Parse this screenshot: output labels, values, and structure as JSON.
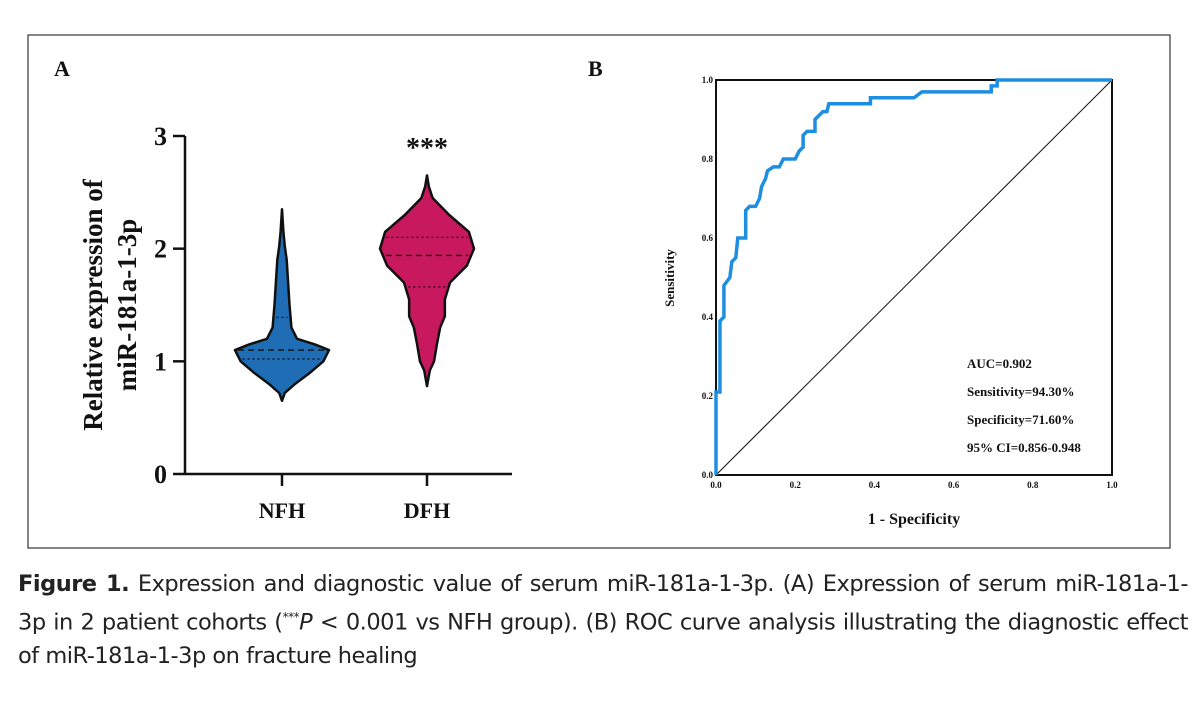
{
  "chart_data": [
    {
      "type": "violin",
      "panel_label": "A",
      "ylabel_lines": [
        "Relative expression of",
        "miR-181a-1-3p"
      ],
      "ylim": [
        0,
        3
      ],
      "yticks": [
        "0",
        "1",
        "2",
        "3"
      ],
      "categories": [
        "NFH",
        "DFH"
      ],
      "significance": "***",
      "colors": {
        "NFH": "#1f6db5",
        "DFH": "#c8185e"
      },
      "groups": [
        {
          "name": "NFH",
          "min": 0.65,
          "max": 2.35,
          "median": 1.1,
          "q1": 1.02,
          "q3": 1.39,
          "density": [
            [
              0.65,
              0
            ],
            [
              0.72,
              0.06
            ],
            [
              0.8,
              0.28
            ],
            [
              0.9,
              0.6
            ],
            [
              1.0,
              0.88
            ],
            [
              1.1,
              1.0
            ],
            [
              1.15,
              0.7
            ],
            [
              1.2,
              0.32
            ],
            [
              1.3,
              0.2
            ],
            [
              1.5,
              0.16
            ],
            [
              1.7,
              0.13
            ],
            [
              1.9,
              0.1
            ],
            [
              2.02,
              0.06
            ],
            [
              2.15,
              0.03
            ],
            [
              2.35,
              0
            ]
          ]
        },
        {
          "name": "DFH",
          "min": 0.78,
          "max": 2.65,
          "median": 1.94,
          "q1": 1.66,
          "q3": 2.1,
          "density": [
            [
              0.78,
              0
            ],
            [
              0.92,
              0.06
            ],
            [
              1.0,
              0.15
            ],
            [
              1.15,
              0.21
            ],
            [
              1.3,
              0.28
            ],
            [
              1.4,
              0.38
            ],
            [
              1.55,
              0.38
            ],
            [
              1.7,
              0.49
            ],
            [
              1.85,
              0.85
            ],
            [
              2.0,
              1.0
            ],
            [
              2.15,
              0.89
            ],
            [
              2.3,
              0.47
            ],
            [
              2.45,
              0.12
            ],
            [
              2.55,
              0.04
            ],
            [
              2.65,
              0
            ]
          ]
        }
      ]
    },
    {
      "type": "line",
      "panel_label": "B",
      "xlabel": "1 - Specificity",
      "ylabel": "Sensitivity",
      "xlim": [
        0,
        1
      ],
      "ylim": [
        0,
        1
      ],
      "xticks": [
        "0.0",
        "0.2",
        "0.4",
        "0.6",
        "0.8",
        "1.0"
      ],
      "yticks": [
        "0.0",
        "0.2",
        "0.4",
        "0.6",
        "0.8",
        "1.0"
      ],
      "annotations": [
        "AUC=0.902",
        "Sensitivity=94.30%",
        "Specificity=71.60%",
        "95% CI=0.856-0.948"
      ],
      "series": [
        {
          "name": "ROC",
          "color": "#1e8fe0",
          "points": [
            [
              0,
              0
            ],
            [
              0,
              0.21
            ],
            [
              0.01,
              0.21
            ],
            [
              0.01,
              0.39
            ],
            [
              0.02,
              0.4
            ],
            [
              0.02,
              0.48
            ],
            [
              0.035,
              0.5
            ],
            [
              0.04,
              0.54
            ],
            [
              0.05,
              0.55
            ],
            [
              0.055,
              0.6
            ],
            [
              0.075,
              0.6
            ],
            [
              0.075,
              0.67
            ],
            [
              0.085,
              0.68
            ],
            [
              0.1,
              0.68
            ],
            [
              0.11,
              0.7
            ],
            [
              0.115,
              0.73
            ],
            [
              0.125,
              0.75
            ],
            [
              0.13,
              0.77
            ],
            [
              0.145,
              0.78
            ],
            [
              0.16,
              0.78
            ],
            [
              0.17,
              0.8
            ],
            [
              0.2,
              0.8
            ],
            [
              0.21,
              0.82
            ],
            [
              0.22,
              0.83
            ],
            [
              0.22,
              0.86
            ],
            [
              0.23,
              0.87
            ],
            [
              0.25,
              0.87
            ],
            [
              0.25,
              0.9
            ],
            [
              0.26,
              0.91
            ],
            [
              0.27,
              0.92
            ],
            [
              0.28,
              0.92
            ],
            [
              0.285,
              0.94
            ],
            [
              0.39,
              0.94
            ],
            [
              0.39,
              0.955
            ],
            [
              0.5,
              0.955
            ],
            [
              0.52,
              0.97
            ],
            [
              0.695,
              0.97
            ],
            [
              0.695,
              0.985
            ],
            [
              0.71,
              0.985
            ],
            [
              0.71,
              1
            ],
            [
              1,
              1
            ]
          ]
        },
        {
          "name": "reference",
          "color": "#111111",
          "points": [
            [
              0,
              0
            ],
            [
              1,
              1
            ]
          ]
        }
      ]
    }
  ],
  "caption": {
    "label": "Figure 1.",
    "text1": " Expression and diagnostic value of serum miR-181a-1-3p. (A) Expression of serum miR-181a-1-3p in 2 patient cohorts (",
    "sup": "***",
    "p": "P",
    "text2": " < 0.001 vs NFH group). (B) ROC curve analysis illustrating the diagnostic effect of miR-181a-1-3p on fracture healing"
  }
}
